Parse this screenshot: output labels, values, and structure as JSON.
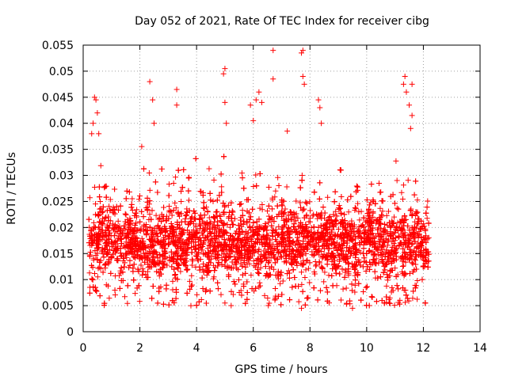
{
  "chart_data": {
    "type": "scatter",
    "title": "Day 052 of 2021, Rate Of TEC Index for receiver cibg",
    "xlabel": "GPS time / hours",
    "ylabel": "ROTI / TECUs",
    "xlim": [
      0,
      14
    ],
    "ylim": [
      0,
      0.055
    ],
    "x_ticks": [
      "0",
      "2",
      "4",
      "6",
      "8",
      "10",
      "12",
      "14"
    ],
    "y_ticks": [
      "0",
      "0.005",
      "0.01",
      "0.015",
      "0.02",
      "0.025",
      "0.03",
      "0.035",
      "0.04",
      "0.045",
      "0.05",
      "0.055"
    ],
    "grid": true,
    "marker": "+",
    "color": "#ff0000",
    "series": [
      {
        "name": "ROTI",
        "x_range": [
          0.2,
          12.2
        ],
        "typical_y": [
          0.007,
          0.027
        ],
        "points": [
          [
            0.3,
            0.038
          ],
          [
            0.35,
            0.04
          ],
          [
            0.4,
            0.045
          ],
          [
            0.45,
            0.0445
          ],
          [
            0.5,
            0.042
          ],
          [
            0.55,
            0.038
          ],
          [
            2.35,
            0.048
          ],
          [
            2.45,
            0.0445
          ],
          [
            2.5,
            0.04
          ],
          [
            3.3,
            0.0465
          ],
          [
            3.3,
            0.0435
          ],
          [
            4.95,
            0.0495
          ],
          [
            5.0,
            0.0505
          ],
          [
            5.0,
            0.044
          ],
          [
            5.05,
            0.04
          ],
          [
            5.9,
            0.0435
          ],
          [
            6.0,
            0.0405
          ],
          [
            6.1,
            0.0445
          ],
          [
            6.2,
            0.046
          ],
          [
            6.3,
            0.044
          ],
          [
            6.7,
            0.054
          ],
          [
            6.7,
            0.0485
          ],
          [
            7.2,
            0.0385
          ],
          [
            7.7,
            0.0535
          ],
          [
            7.75,
            0.054
          ],
          [
            7.75,
            0.049
          ],
          [
            7.8,
            0.0475
          ],
          [
            8.3,
            0.0445
          ],
          [
            8.35,
            0.043
          ],
          [
            8.4,
            0.04
          ],
          [
            11.3,
            0.0475
          ],
          [
            11.35,
            0.049
          ],
          [
            11.4,
            0.046
          ],
          [
            11.5,
            0.0435
          ],
          [
            11.6,
            0.0475
          ],
          [
            11.6,
            0.0415
          ],
          [
            11.55,
            0.039
          ],
          [
            5.0,
            0.0055
          ],
          [
            7.7,
            0.0045
          ],
          [
            9.5,
            0.0045
          ],
          [
            10.8,
            0.0055
          ],
          [
            3.8,
            0.005
          ]
        ]
      }
    ]
  }
}
